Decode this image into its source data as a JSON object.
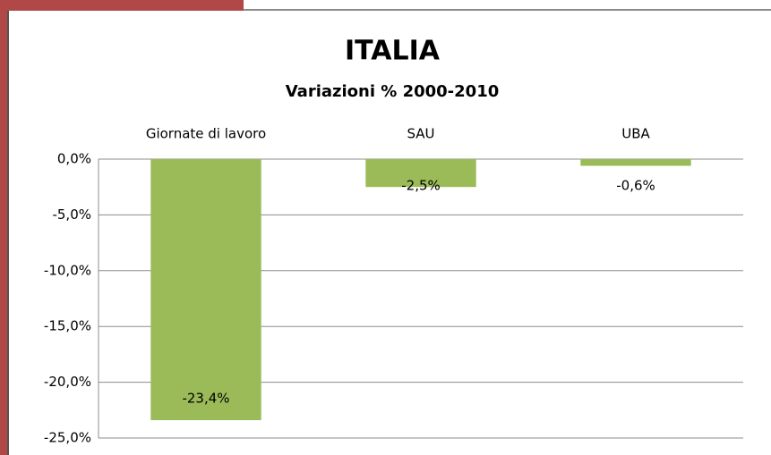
{
  "chart_data": {
    "type": "bar",
    "title": "ITALIA",
    "subtitle": "Variazioni % 2000-2010",
    "categories": [
      "Giornate di lavoro",
      "SAU",
      "UBA"
    ],
    "values": [
      -23.4,
      -2.5,
      -0.6
    ],
    "value_labels": [
      "-23,4%",
      "-2,5%",
      "-0,6%"
    ],
    "color": "#9bbb59",
    "ylim": [
      -25,
      0
    ],
    "yticks": [
      {
        "value": 0,
        "label": "0,0%"
      },
      {
        "value": -5,
        "label": "-5,0%"
      },
      {
        "value": -10,
        "label": "-10,0%"
      },
      {
        "value": -15,
        "label": "-15,0%"
      },
      {
        "value": -20,
        "label": "-20,0%"
      },
      {
        "value": -25,
        "label": "-25,0%"
      }
    ],
    "grid": true
  }
}
